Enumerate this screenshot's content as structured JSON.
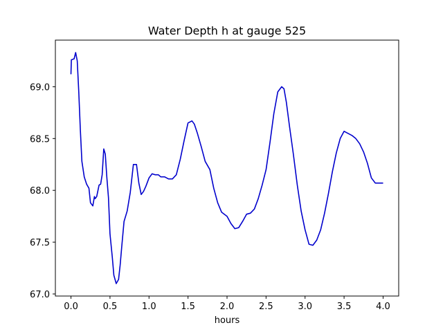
{
  "chart_data": {
    "type": "line",
    "title": "Water Depth h at gauge 525",
    "xlabel": "hours",
    "ylabel": "",
    "xlim": [
      -0.2,
      4.2
    ],
    "ylim": [
      66.98,
      69.45
    ],
    "xticks": [
      0.0,
      0.5,
      1.0,
      1.5,
      2.0,
      2.5,
      3.0,
      3.5,
      4.0
    ],
    "xtick_labels": [
      "0.0",
      "0.5",
      "1.0",
      "1.5",
      "2.0",
      "2.5",
      "3.0",
      "3.5",
      "4.0"
    ],
    "yticks": [
      67.0,
      67.5,
      68.0,
      68.5,
      69.0
    ],
    "ytick_labels": [
      "67.0",
      "67.5",
      "68.0",
      "68.5",
      "69.0"
    ],
    "grid": false,
    "series": [
      {
        "color": "#0000cc",
        "x": [
          0.0,
          0.005,
          0.04,
          0.06,
          0.08,
          0.1,
          0.12,
          0.14,
          0.17,
          0.2,
          0.23,
          0.25,
          0.27,
          0.28,
          0.3,
          0.31,
          0.33,
          0.36,
          0.38,
          0.4,
          0.42,
          0.44,
          0.46,
          0.48,
          0.5,
          0.53,
          0.55,
          0.58,
          0.61,
          0.63,
          0.65,
          0.68,
          0.72,
          0.76,
          0.8,
          0.84,
          0.87,
          0.9,
          0.93,
          0.96,
          1.0,
          1.04,
          1.08,
          1.12,
          1.15,
          1.2,
          1.25,
          1.3,
          1.35,
          1.4,
          1.45,
          1.5,
          1.55,
          1.58,
          1.62,
          1.67,
          1.72,
          1.78,
          1.83,
          1.88,
          1.93,
          2.0,
          2.05,
          2.1,
          2.15,
          2.2,
          2.25,
          2.3,
          2.35,
          2.4,
          2.45,
          2.5,
          2.55,
          2.6,
          2.65,
          2.7,
          2.73,
          2.76,
          2.8,
          2.85,
          2.9,
          2.95,
          3.0,
          3.05,
          3.1,
          3.15,
          3.2,
          3.25,
          3.3,
          3.35,
          3.4,
          3.45,
          3.5,
          3.55,
          3.6,
          3.65,
          3.7,
          3.75,
          3.8,
          3.85,
          3.9,
          3.95,
          4.0
        ],
        "y": [
          69.12,
          69.26,
          69.27,
          69.33,
          69.25,
          68.95,
          68.58,
          68.28,
          68.13,
          68.06,
          68.02,
          67.88,
          67.86,
          67.85,
          67.94,
          67.92,
          67.94,
          68.05,
          68.06,
          68.15,
          68.4,
          68.35,
          68.12,
          67.93,
          67.58,
          67.35,
          67.18,
          67.1,
          67.14,
          67.28,
          67.45,
          67.7,
          67.8,
          67.98,
          68.25,
          68.25,
          68.07,
          67.96,
          67.99,
          68.04,
          68.12,
          68.16,
          68.15,
          68.15,
          68.13,
          68.13,
          68.11,
          68.11,
          68.15,
          68.3,
          68.48,
          68.65,
          68.67,
          68.64,
          68.55,
          68.42,
          68.28,
          68.2,
          68.02,
          67.88,
          67.79,
          67.75,
          67.68,
          67.63,
          67.64,
          67.7,
          67.77,
          67.78,
          67.82,
          67.92,
          68.05,
          68.2,
          68.46,
          68.74,
          68.95,
          69.0,
          68.98,
          68.85,
          68.62,
          68.35,
          68.05,
          67.8,
          67.62,
          67.48,
          67.47,
          67.52,
          67.62,
          67.78,
          67.97,
          68.18,
          68.36,
          68.5,
          68.57,
          68.55,
          68.53,
          68.5,
          68.45,
          68.37,
          68.26,
          68.12,
          68.07,
          68.07,
          68.07
        ]
      }
    ]
  }
}
